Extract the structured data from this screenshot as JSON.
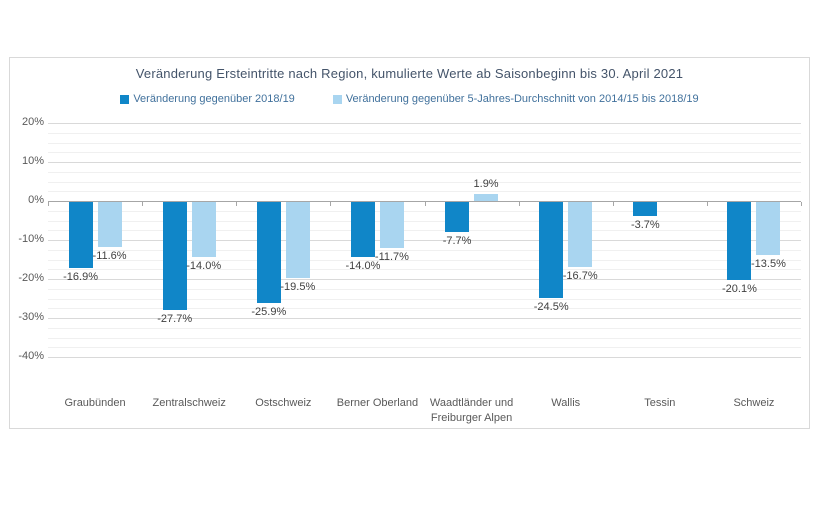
{
  "chart_data": {
    "type": "bar",
    "title": "Veränderung Ersteintritte nach Region, kumulierte Werte ab Saisonbeginn bis 30. April 2021",
    "categories": [
      "Graubünden",
      "Zentralschweiz",
      "Ostschweiz",
      "Berner Oberland",
      "Waadtländer und Freiburger Alpen",
      "Wallis",
      "Tessin",
      "Schweiz"
    ],
    "series": [
      {
        "name": "Veränderung gegenüber 2018/19",
        "color": "#1086C8",
        "values": [
          -16.9,
          -27.7,
          -25.9,
          -14.0,
          -7.7,
          -24.5,
          -3.7,
          -20.1
        ],
        "labels": [
          "-16.9%",
          "-27.7%",
          "-25.9%",
          "-14.0%",
          "-7.7%",
          "-24.5%",
          "-3.7%",
          "-20.1%"
        ]
      },
      {
        "name": "Veränderung gegenüber 5-Jahres-Durchschnitt von 2014/15 bis 2018/19",
        "color": "#A9D5F0",
        "values": [
          -11.6,
          -14.0,
          -19.5,
          -11.7,
          1.9,
          -16.7,
          null,
          -13.5
        ],
        "labels": [
          "-11.6%",
          "-14.0%",
          "-19.5%",
          "-11.7%",
          "1.9%",
          "-16.7%",
          null,
          "-13.5%"
        ]
      }
    ],
    "y_axis": {
      "ticks": [
        "20%",
        "10%",
        "0%",
        "-10%",
        "-20%",
        "-30%",
        "-40%"
      ],
      "max": 20,
      "min": -40,
      "major_step": 10,
      "minor_step": 2.5
    },
    "grid": true,
    "legend_position": "top"
  },
  "colors": {
    "title_text": "#44546A",
    "legend_text": "#41719C",
    "data_label_text": "#404040",
    "axis_text": "#595959",
    "gridline_major": "#d9d9d9",
    "gridline_minor": "#f0f0f0",
    "zero_axis": "#a6a6a6",
    "chart_border": "#d9d9d9"
  }
}
